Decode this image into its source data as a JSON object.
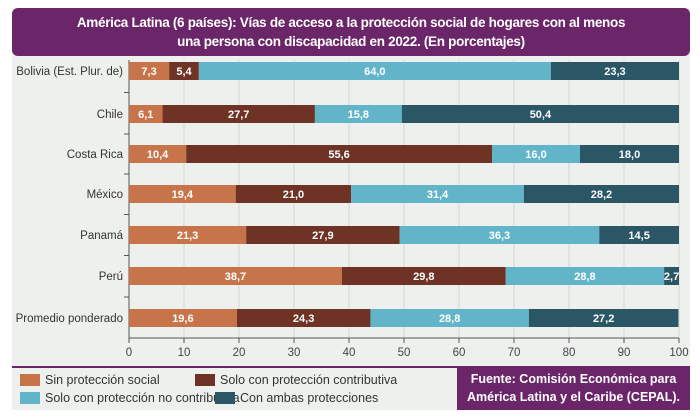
{
  "chart_data": {
    "type": "bar",
    "orientation": "horizontal",
    "stacked": true,
    "title_line1": "América Latina (6 países): Vías de acceso a la protección social de hogares con al menos",
    "title_line2": "una persona con discapacidad en 2022. (En porcentajes)",
    "categories": [
      "Bolivia (Est. Plur. de)",
      "Chile",
      "Costa Rica",
      "México",
      "Panamá",
      "Perú",
      "Promedio ponderado"
    ],
    "series": [
      {
        "name": "Sin protección social",
        "color": "#c8744a",
        "values": [
          7.3,
          6.1,
          10.4,
          19.4,
          21.3,
          38.7,
          19.6
        ],
        "labels": [
          "7,3",
          "6,1",
          "10,4",
          "19,4",
          "21,3",
          "38,7",
          "19,6"
        ]
      },
      {
        "name": "Solo con protección contributiva",
        "color": "#6e3324",
        "values": [
          5.4,
          27.7,
          55.6,
          21.0,
          27.9,
          29.8,
          24.3
        ],
        "labels": [
          "5,4",
          "27,7",
          "55,6",
          "21,0",
          "27,9",
          "29,8",
          "24,3"
        ]
      },
      {
        "name": "Solo con protección no contributiva",
        "color": "#62b4c8",
        "values": [
          64.0,
          15.8,
          16.0,
          31.4,
          36.3,
          28.8,
          28.8
        ],
        "labels": [
          "64,0",
          "15,8",
          "16,0",
          "31,4",
          "36,3",
          "28,8",
          "28,8"
        ]
      },
      {
        "name": "Con ambas protecciones",
        "color": "#2a5666",
        "values": [
          23.3,
          50.4,
          18.0,
          28.2,
          14.5,
          2.7,
          27.2
        ],
        "labels": [
          "23,3",
          "50,4",
          "18,0",
          "28,2",
          "14,5",
          "2,7",
          "27,2"
        ]
      }
    ],
    "xlim": [
      0,
      100
    ],
    "xticks": [
      "0",
      "10",
      "20",
      "30",
      "40",
      "50",
      "60",
      "70",
      "80",
      "90",
      "100"
    ],
    "grid": true,
    "legend_placement": "bottom-left"
  },
  "source_line1": "Fuente: Comisión Económica para",
  "source_line2": "América Latina y el Caribe (CEPAL)."
}
